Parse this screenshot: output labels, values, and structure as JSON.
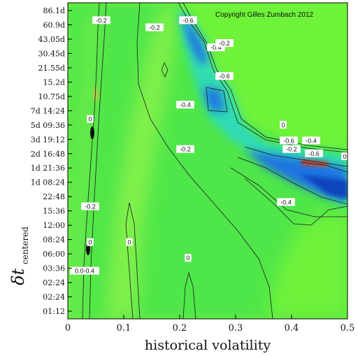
{
  "chart_data": {
    "type": "heatmap",
    "title": "",
    "copyright": "Copyright Gilles Zumbach 2012",
    "xlabel": "historical volatility",
    "ylabel_main": "δt",
    "ylabel_sub": "centered",
    "xlim": [
      0,
      0.5
    ],
    "x_ticks": [
      "0",
      "0.1",
      "0.2",
      "0.3",
      "0.4",
      "0.5"
    ],
    "y_ticks": [
      "01:12",
      "02:24",
      "02:24",
      "03:36",
      "06:00",
      "08:24",
      "12:00",
      "15:36",
      "22:48",
      "1d 08:24",
      "1d 21:36",
      "2d 16:48",
      "3d 19:12",
      "5d 09:36",
      "7d 14:24",
      "10.75d",
      "15.2d",
      "21.55d",
      "30.45d",
      "43.05d",
      "60.9d",
      "86.1d"
    ],
    "colors": {
      "background": "#6ff23a",
      "main_field": "#4fe64a",
      "light_green": "#8ef34c",
      "cyan": "#2ad9c8",
      "blue": "#1e6ae6",
      "deep_blue": "#0f3fb8",
      "red": "#d83a16",
      "yellow": "#d9c24a",
      "contour": "#1a1a1a"
    },
    "contour_labels": [
      {
        "text": "-0.2",
        "x": 0.06,
        "y": 20.3
      },
      {
        "text": "-0.2",
        "x": 0.155,
        "y": 19.8
      },
      {
        "text": "-0.6",
        "x": 0.215,
        "y": 20.3
      },
      {
        "text": "-0.4",
        "x": 0.265,
        "y": 18.4
      },
      {
        "text": "-0.2",
        "x": 0.28,
        "y": 18.7
      },
      {
        "text": "-0.6",
        "x": 0.28,
        "y": 16.4
      },
      {
        "text": "-0.4",
        "x": 0.21,
        "y": 14.4
      },
      {
        "text": "0",
        "x": 0.04,
        "y": 13.4
      },
      {
        "text": "0",
        "x": 0.385,
        "y": 13.0
      },
      {
        "text": "-0.6",
        "x": 0.395,
        "y": 11.9
      },
      {
        "text": "-0.4",
        "x": 0.435,
        "y": 11.9
      },
      {
        "text": "-0.2",
        "x": 0.4,
        "y": 11.3
      },
      {
        "text": "-0.6",
        "x": 0.44,
        "y": 11.0
      },
      {
        "text": "0",
        "x": 0.495,
        "y": 10.8
      },
      {
        "text": "-0.2",
        "x": 0.21,
        "y": 11.3
      },
      {
        "text": "-0.4",
        "x": 0.39,
        "y": 7.6
      },
      {
        "text": "-0.2",
        "x": 0.04,
        "y": 7.3
      },
      {
        "text": "0",
        "x": 0.04,
        "y": 4.8
      },
      {
        "text": "0",
        "x": 0.11,
        "y": 4.8
      },
      {
        "text": "0",
        "x": 0.215,
        "y": 3.7
      },
      {
        "text": "0.0-0.4",
        "x": 0.03,
        "y": 2.8
      }
    ]
  }
}
